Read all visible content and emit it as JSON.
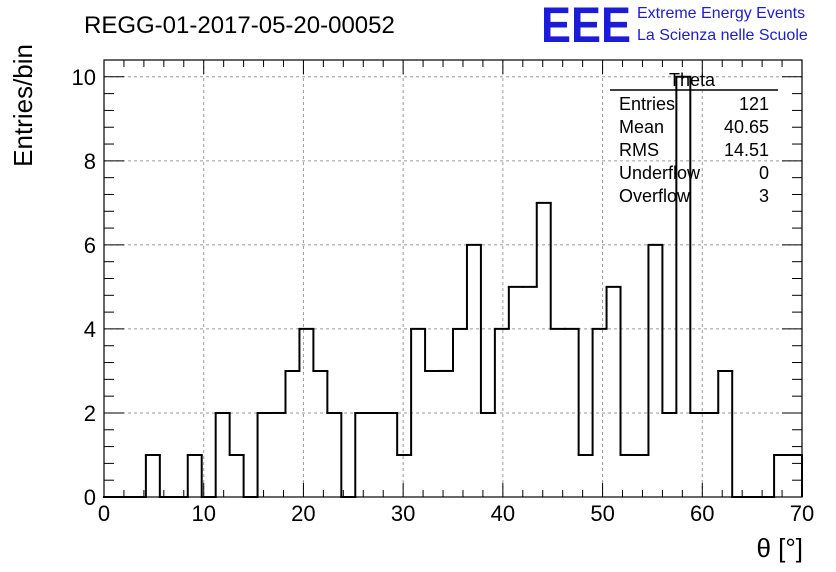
{
  "logo": {
    "mark": "EEE",
    "line1": "Extreme Energy Events",
    "line2": "La Scienza nelle Scuole",
    "color": "#1b1bd8"
  },
  "chart_data": {
    "type": "bar",
    "title": "REGG-01-2017-05-20-00052",
    "xlabel": "θ [°]",
    "ylabel": "Entries/bin",
    "xlim": [
      0,
      70
    ],
    "ylim": [
      0,
      10.4
    ],
    "x_ticks": [
      0,
      10,
      20,
      30,
      40,
      50,
      60,
      70
    ],
    "y_ticks": [
      0,
      2,
      4,
      6,
      8,
      10
    ],
    "grid": true,
    "bin_width": 1.4,
    "bin_start": 0,
    "values": [
      0,
      0,
      0,
      1,
      0,
      0,
      1,
      0,
      2,
      1,
      0,
      2,
      2,
      3,
      4,
      3,
      2,
      0,
      2,
      2,
      2,
      1,
      4,
      3,
      3,
      4,
      6,
      2,
      4,
      5,
      5,
      7,
      4,
      4,
      1,
      4,
      5,
      1,
      1,
      6,
      2,
      10,
      2,
      2,
      3,
      0,
      0,
      0,
      1,
      1
    ],
    "legend": {
      "name": "Theta",
      "placement": "top-right",
      "entries": [
        {
          "label": "Entries",
          "value": "121"
        },
        {
          "label": "Mean",
          "value": "40.65"
        },
        {
          "label": "RMS",
          "value": "14.51"
        },
        {
          "label": "Underflow",
          "value": "0"
        },
        {
          "label": "Overflow",
          "value": "3"
        }
      ]
    }
  }
}
